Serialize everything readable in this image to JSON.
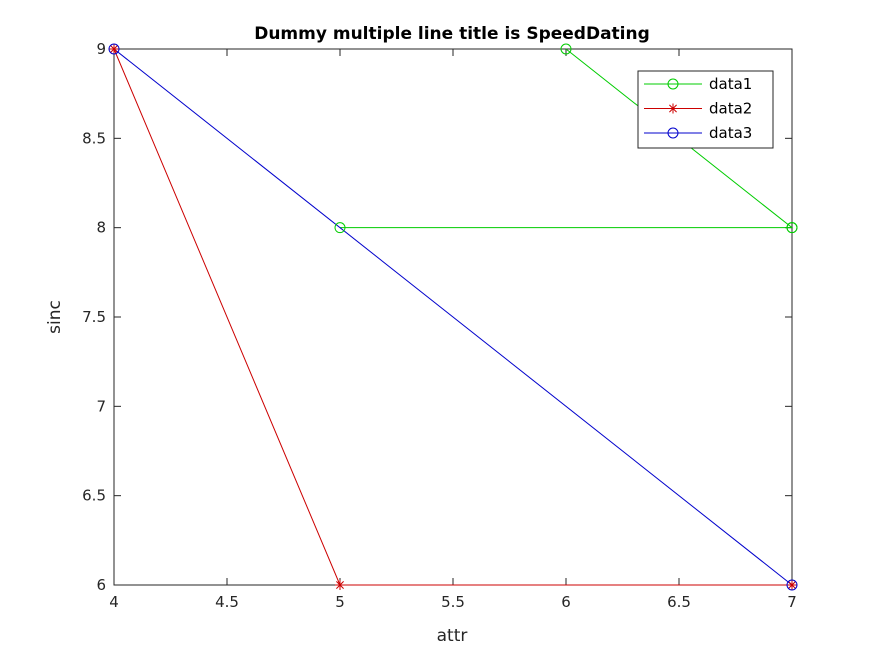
{
  "chart_data": {
    "type": "line",
    "title": "Dummy multiple line title is SpeedDating",
    "xlabel": "attr",
    "ylabel": "sinc",
    "xlim": [
      4,
      7
    ],
    "ylim": [
      6,
      9
    ],
    "xticks": [
      "4",
      "4.5",
      "5",
      "5.5",
      "6",
      "6.5",
      "7"
    ],
    "yticks": [
      "6",
      "6.5",
      "7",
      "7.5",
      "8",
      "8.5",
      "9"
    ],
    "grid": false,
    "legend_position": "top-right",
    "series": [
      {
        "name": "data1",
        "color": "#00cc00",
        "marker": "circle",
        "x": [
          5,
          7,
          7,
          6
        ],
        "y": [
          8,
          8,
          8,
          9
        ]
      },
      {
        "name": "data2",
        "color": "#cc0000",
        "marker": "asterisk",
        "x": [
          4,
          5,
          7
        ],
        "y": [
          9,
          6,
          6
        ]
      },
      {
        "name": "data3",
        "color": "#0000cc",
        "marker": "circle",
        "x": [
          4,
          7
        ],
        "y": [
          9,
          6
        ]
      }
    ]
  }
}
